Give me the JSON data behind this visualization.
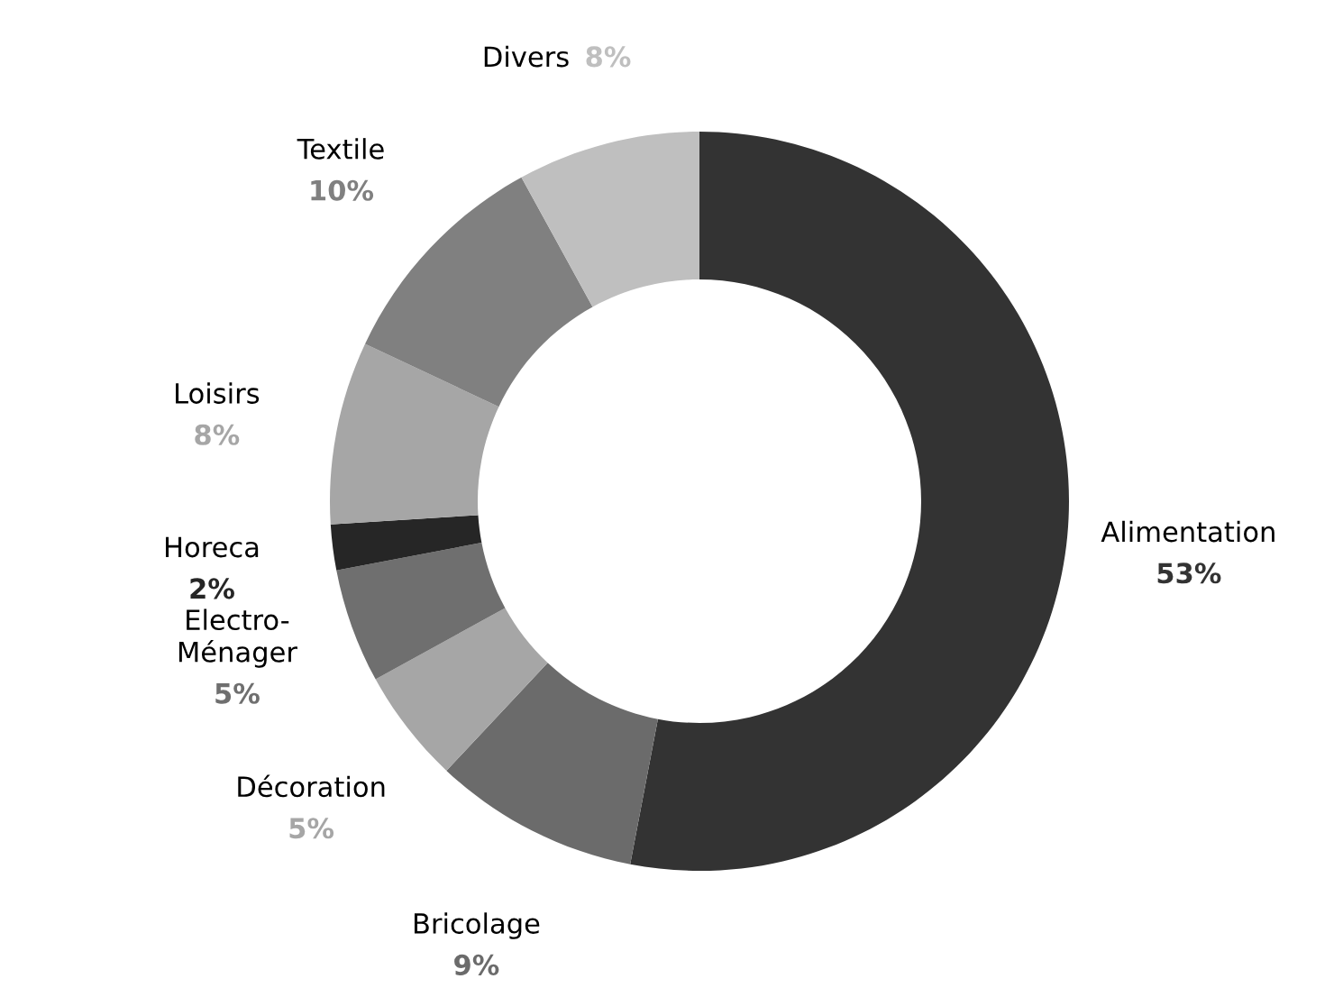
{
  "chart_data": {
    "type": "donut",
    "categories": [
      "Alimentation",
      "Bricolage",
      "Décoration",
      "Electro-\nMénager",
      "Horeca",
      "Loisirs",
      "Textile",
      "Divers"
    ],
    "values": [
      53,
      9,
      5,
      5,
      2,
      8,
      10,
      8
    ],
    "value_labels": [
      "53%",
      "9%",
      "5%",
      "5%",
      "2%",
      "8%",
      "10%",
      "8%"
    ],
    "colors": [
      "#333333",
      "#6b6b6b",
      "#a6a6a6",
      "#6f6f6f",
      "#262626",
      "#a6a6a6",
      "#808080",
      "#bfbfbf"
    ],
    "legend": false
  }
}
